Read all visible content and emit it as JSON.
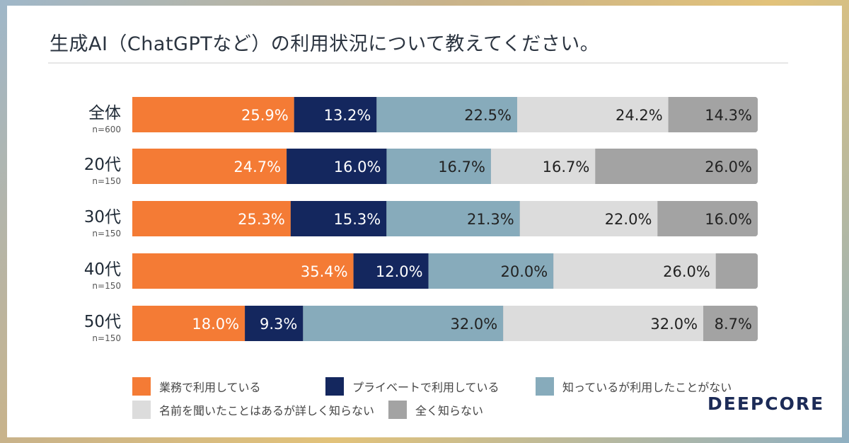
{
  "chart_data": {
    "type": "bar",
    "orientation": "horizontal-stacked-100",
    "title": "生成AI（ChatGPTなど）の利用状況について教えてください。",
    "categories": [
      {
        "label": "全体",
        "n": "n=600"
      },
      {
        "label": "20代",
        "n": "n=150"
      },
      {
        "label": "30代",
        "n": "n=150"
      },
      {
        "label": "40代",
        "n": "n=150"
      },
      {
        "label": "50代",
        "n": "n=150"
      }
    ],
    "series": [
      {
        "name": "業務で利用している",
        "color": "#f47b35",
        "text_color": "#ffffff",
        "values": [
          25.9,
          24.7,
          25.3,
          35.4,
          18.0
        ],
        "labels": [
          "25.9%",
          "24.7%",
          "25.3%",
          "35.4%",
          "18.0%"
        ]
      },
      {
        "name": "プライベートで利用している",
        "color": "#14275e",
        "text_color": "#ffffff",
        "values": [
          13.2,
          16.0,
          15.3,
          12.0,
          9.3
        ],
        "labels": [
          "13.2%",
          "16.0%",
          "15.3%",
          "12.0%",
          "9.3%"
        ]
      },
      {
        "name": "知っているが利用したことがない",
        "color": "#87abbb",
        "text_color": "#222222",
        "values": [
          22.5,
          16.7,
          21.3,
          20.0,
          32.0
        ],
        "labels": [
          "22.5%",
          "16.7%",
          "21.3%",
          "20.0%",
          "32.0%"
        ]
      },
      {
        "name": "名前を聞いたことはあるが詳しく知らない",
        "color": "#dcdcdc",
        "text_color": "#222222",
        "values": [
          24.2,
          16.7,
          22.0,
          26.0,
          32.0
        ],
        "labels": [
          "24.2%",
          "16.7%",
          "22.0%",
          "26.0%",
          "32.0%"
        ]
      },
      {
        "name": "全く知らない",
        "color": "#a3a3a3",
        "text_color": "#222222",
        "values": [
          14.3,
          26.0,
          16.0,
          6.7,
          8.7
        ],
        "labels": [
          "14.3%",
          "26.0%",
          "16.0%",
          "",
          "8.7%"
        ]
      }
    ],
    "xlim": [
      0,
      100
    ],
    "grid": false,
    "legend_position": "bottom"
  },
  "brand": {
    "logo_text": "DEEPCORE"
  }
}
